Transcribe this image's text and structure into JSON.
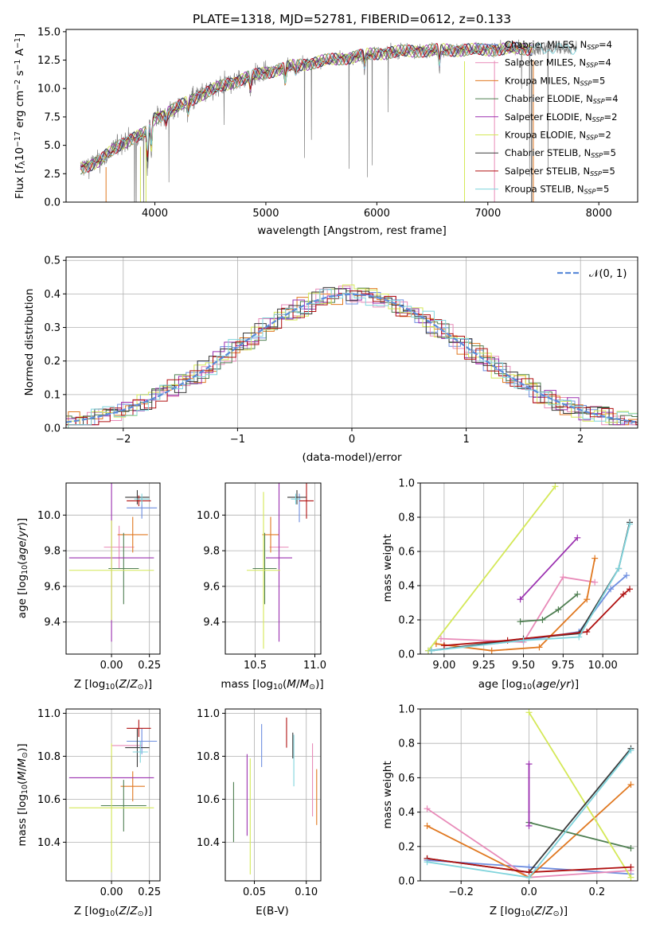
{
  "colors": {
    "chabrier_miles": "#6e8ee0",
    "salpeter_miles": "#e88ab8",
    "kroupa_miles": "#e07820",
    "chabrier_elodie": "#4f7f52",
    "salpeter_elodie": "#9b30b0",
    "kroupa_elodie": "#d4e857",
    "chabrier_stelib": "#3a3a3a",
    "salpeter_stelib": "#b01010",
    "kroupa_stelib": "#7fd4dc",
    "data": "#808080",
    "normal": "#5b8bd9"
  },
  "chart_data": [
    {
      "type": "line",
      "title": "PLATE=1318, MJD=52781, FIBERID=0612, z=0.133",
      "xlabel": "wavelength [Angstrom, rest frame]",
      "ylabel": "Flux [fλ10⁻¹⁷ erg cm⁻² s⁻¹ A⁻¹]",
      "xlim": [
        3200,
        8350
      ],
      "ylim": [
        0,
        15.2
      ],
      "xticks": [
        4000,
        5000,
        6000,
        7000,
        8000
      ],
      "yticks": [
        0.0,
        2.5,
        5.0,
        7.5,
        10.0,
        12.5,
        15.0
      ],
      "legend": {
        "placement": "top-right",
        "entries": [
          "Chabrier MILES, N_SSP=4",
          "Salpeter MILES, N_SSP=4",
          "Kroupa MILES, N_SSP=5",
          "Chabrier ELODIE, N_SSP=4",
          "Salpeter ELODIE, N_SSP=2",
          "Kroupa ELODIE, N_SSP=2",
          "Chabrier STELIB, N_SSP=5",
          "Salpeter STELIB, N_SSP=5",
          "Kroupa STELIB, N_SSP=5"
        ]
      },
      "spectrum_continuum": [
        [
          3330,
          3.0
        ],
        [
          3500,
          3.6
        ],
        [
          3700,
          5.2
        ],
        [
          3900,
          6.0
        ],
        [
          4000,
          7.4
        ],
        [
          4200,
          8.3
        ],
        [
          4400,
          9.4
        ],
        [
          4600,
          10.2
        ],
        [
          4800,
          10.9
        ],
        [
          5000,
          11.4
        ],
        [
          5200,
          11.9
        ],
        [
          5500,
          12.4
        ],
        [
          5800,
          12.8
        ],
        [
          6000,
          13.1
        ],
        [
          6300,
          13.3
        ],
        [
          6600,
          13.4
        ],
        [
          6900,
          13.4
        ],
        [
          7200,
          13.5
        ],
        [
          7500,
          13.5
        ],
        [
          7700,
          13.5
        ],
        [
          7800,
          13.6
        ]
      ],
      "models_end_wavelength": [
        7400,
        7400,
        7400,
        7400,
        7400,
        7400,
        7400,
        7400,
        7800
      ]
    },
    {
      "type": "histogram",
      "xlabel": "(data-model)/error",
      "ylabel": "Normed distribution",
      "xlim": [
        -2.5,
        2.5
      ],
      "ylim": [
        0,
        0.51
      ],
      "xticks": [
        -2,
        -1,
        0,
        1,
        2
      ],
      "yticks": [
        0.0,
        0.1,
        0.2,
        0.3,
        0.4,
        0.5
      ],
      "legend": {
        "placement": "top-right",
        "entries": [
          "𝒩(0, 1)"
        ]
      },
      "bin_width": 0.1
    },
    {
      "type": "scatter",
      "subtype": "errorbar",
      "xlabel": "Z [log₁₀(Z/Z⊙)]",
      "ylabel": "age  [log₁₀(age/yr)]",
      "xlim": [
        -0.3,
        0.32
      ],
      "ylim": [
        9.22,
        10.18
      ],
      "xticks": [
        0.0,
        0.25
      ],
      "yticks": [
        9.4,
        9.6,
        9.8,
        10.0
      ],
      "points": [
        {
          "model": "chabrier_miles",
          "x": 0.2,
          "xerr": 0.1,
          "y": 10.04,
          "yerr": 0.06
        },
        {
          "model": "salpeter_miles",
          "x": 0.05,
          "xerr": 0.1,
          "y": 9.82,
          "yerr": 0.12
        },
        {
          "model": "kroupa_miles",
          "x": 0.14,
          "xerr": 0.1,
          "y": 9.89,
          "yerr": 0.1
        },
        {
          "model": "chabrier_elodie",
          "x": 0.08,
          "xerr": 0.1,
          "y": 9.7,
          "yerr": 0.2
        },
        {
          "model": "salpeter_elodie",
          "x": 0.0,
          "xerr": 0.28,
          "y": 9.76,
          "yerr": 0.47
        },
        {
          "model": "kroupa_elodie",
          "x": 0.0,
          "xerr": 0.28,
          "y": 9.69,
          "yerr": 0.28
        },
        {
          "model": "chabrier_stelib",
          "x": 0.17,
          "xerr": 0.08,
          "y": 10.1,
          "yerr": 0.04
        },
        {
          "model": "salpeter_stelib",
          "x": 0.18,
          "xerr": 0.08,
          "y": 10.08,
          "yerr": 0.03
        },
        {
          "model": "kroupa_stelib",
          "x": 0.2,
          "xerr": 0.05,
          "y": 10.09,
          "yerr": 0.03
        }
      ]
    },
    {
      "type": "scatter",
      "subtype": "errorbar",
      "xlabel": "mass [log₁₀(M/M⊙)]",
      "ylabel": "",
      "xlim": [
        10.25,
        11.05
      ],
      "ylim": [
        9.22,
        10.18
      ],
      "xticks": [
        10.5,
        11.0
      ],
      "yticks": [
        9.4,
        9.6,
        9.8,
        10.0
      ],
      "points": [
        {
          "model": "chabrier_miles",
          "x": 10.87,
          "xerr": 0.0,
          "y": 10.04,
          "yerr": 0.08
        },
        {
          "model": "salpeter_miles",
          "x": 10.7,
          "xerr": 0.08,
          "y": 9.82,
          "yerr": 0.1
        },
        {
          "model": "kroupa_miles",
          "x": 10.63,
          "xerr": 0.07,
          "y": 9.89,
          "yerr": 0.1
        },
        {
          "model": "chabrier_elodie",
          "x": 10.58,
          "xerr": 0.1,
          "y": 9.7,
          "yerr": 0.2
        },
        {
          "model": "salpeter_elodie",
          "x": 10.7,
          "xerr": 0.11,
          "y": 9.76,
          "yerr": 0.47
        },
        {
          "model": "kroupa_elodie",
          "x": 10.57,
          "xerr": 0.14,
          "y": 9.69,
          "yerr": 0.44
        },
        {
          "model": "chabrier_stelib",
          "x": 10.85,
          "xerr": 0.08,
          "y": 10.1,
          "yerr": 0.04
        },
        {
          "model": "salpeter_stelib",
          "x": 10.93,
          "xerr": 0.06,
          "y": 10.08,
          "yerr": 0.1
        },
        {
          "model": "kroupa_stelib",
          "x": 10.84,
          "xerr": 0.04,
          "y": 10.09,
          "yerr": 0.03
        }
      ]
    },
    {
      "type": "line",
      "xlabel": "age  [log₁₀(age/yr)]",
      "ylabel": "mass weight",
      "xlim": [
        8.85,
        10.22
      ],
      "ylim": [
        0.0,
        1.0
      ],
      "xticks": [
        9.0,
        9.25,
        9.5,
        9.75,
        10.0
      ],
      "yticks": [
        0.0,
        0.2,
        0.4,
        0.6,
        0.8,
        1.0
      ],
      "series": [
        {
          "model": "chabrier_miles",
          "x": [
            8.9,
            9.5,
            9.85,
            10.05,
            10.15
          ],
          "y": [
            0.02,
            0.08,
            0.13,
            0.38,
            0.46
          ]
        },
        {
          "model": "salpeter_miles",
          "x": [
            8.98,
            9.5,
            9.75,
            9.95
          ],
          "y": [
            0.09,
            0.07,
            0.45,
            0.42
          ]
        },
        {
          "model": "kroupa_miles",
          "x": [
            8.95,
            9.3,
            9.6,
            9.9,
            9.95
          ],
          "y": [
            0.06,
            0.02,
            0.04,
            0.32,
            0.56
          ]
        },
        {
          "model": "chabrier_elodie",
          "x": [
            9.48,
            9.62,
            9.72,
            9.84
          ],
          "y": [
            0.19,
            0.2,
            0.26,
            0.35
          ]
        },
        {
          "model": "salpeter_elodie",
          "x": [
            9.48,
            9.84
          ],
          "y": [
            0.32,
            0.68
          ]
        },
        {
          "model": "kroupa_elodie",
          "x": [
            8.9,
            9.7
          ],
          "y": [
            0.02,
            0.98
          ]
        },
        {
          "model": "chabrier_stelib",
          "x": [
            8.92,
            9.5,
            9.85,
            10.1,
            10.17
          ],
          "y": [
            0.02,
            0.09,
            0.12,
            0.5,
            0.77
          ]
        },
        {
          "model": "salpeter_stelib",
          "x": [
            9.0,
            9.4,
            9.9,
            10.13,
            10.17
          ],
          "y": [
            0.05,
            0.08,
            0.13,
            0.35,
            0.38
          ]
        },
        {
          "model": "kroupa_stelib",
          "x": [
            8.92,
            9.5,
            9.85,
            10.1,
            10.17
          ],
          "y": [
            0.02,
            0.08,
            0.1,
            0.5,
            0.76
          ]
        }
      ]
    },
    {
      "type": "scatter",
      "subtype": "errorbar",
      "xlabel": "Z [log₁₀(Z/Z⊙)]",
      "ylabel": "mass [log₁₀(M/M⊙)]",
      "xlim": [
        -0.3,
        0.32
      ],
      "ylim": [
        10.22,
        11.02
      ],
      "xticks": [
        0.0,
        0.25
      ],
      "yticks": [
        10.4,
        10.6,
        10.8,
        11.0
      ],
      "points": [
        {
          "model": "chabrier_miles",
          "x": 0.2,
          "xerr": 0.1,
          "y": 10.87,
          "yerr": 0.06
        },
        {
          "model": "salpeter_miles",
          "x": 0.1,
          "xerr": 0.1,
          "y": 10.85,
          "yerr": 0.0
        },
        {
          "model": "kroupa_miles",
          "x": 0.14,
          "xerr": 0.08,
          "y": 10.66,
          "yerr": 0.07
        },
        {
          "model": "chabrier_elodie",
          "x": 0.08,
          "xerr": 0.15,
          "y": 10.57,
          "yerr": 0.12
        },
        {
          "model": "salpeter_elodie",
          "x": 0.0,
          "xerr": 0.28,
          "y": 10.7,
          "yerr": 0.1
        },
        {
          "model": "kroupa_elodie",
          "x": 0.0,
          "xerr": 0.28,
          "y": 10.56,
          "yerr": 0.3
        },
        {
          "model": "chabrier_stelib",
          "x": 0.17,
          "xerr": 0.08,
          "y": 10.84,
          "yerr": 0.09
        },
        {
          "model": "salpeter_stelib",
          "x": 0.18,
          "xerr": 0.08,
          "y": 10.93,
          "yerr": 0.04
        },
        {
          "model": "kroupa_stelib",
          "x": 0.19,
          "xerr": 0.05,
          "y": 10.82,
          "yerr": 0.05
        }
      ]
    },
    {
      "type": "scatter",
      "subtype": "errorbar",
      "xlabel": "E(B-V)",
      "ylabel": "",
      "xlim": [
        0.022,
        0.114
      ],
      "ylim": [
        10.22,
        11.02
      ],
      "xticks": [
        0.05,
        0.1
      ],
      "yticks": [
        10.4,
        10.6,
        10.8,
        11.0
      ],
      "points": [
        {
          "model": "chabrier_elodie",
          "x": 0.03,
          "xerr": 0.0,
          "y": 10.54,
          "yerr": 0.14
        },
        {
          "model": "salpeter_elodie",
          "x": 0.043,
          "xerr": 0.0,
          "y": 10.62,
          "yerr": 0.19
        },
        {
          "model": "kroupa_elodie",
          "x": 0.046,
          "xerr": 0.0,
          "y": 10.52,
          "yerr": 0.27
        },
        {
          "model": "chabrier_miles",
          "x": 0.057,
          "xerr": 0.0,
          "y": 10.85,
          "yerr": 0.1
        },
        {
          "model": "salpeter_stelib",
          "x": 0.081,
          "xerr": 0.0,
          "y": 10.91,
          "yerr": 0.07
        },
        {
          "model": "chabrier_stelib",
          "x": 0.087,
          "xerr": 0.0,
          "y": 10.85,
          "yerr": 0.06
        },
        {
          "model": "kroupa_stelib",
          "x": 0.088,
          "xerr": 0.0,
          "y": 10.78,
          "yerr": 0.12
        },
        {
          "model": "salpeter_miles",
          "x": 0.106,
          "xerr": 0.0,
          "y": 10.69,
          "yerr": 0.17
        },
        {
          "model": "kroupa_miles",
          "x": 0.11,
          "xerr": 0.0,
          "y": 10.61,
          "yerr": 0.13
        }
      ]
    },
    {
      "type": "line",
      "xlabel": "Z [log₁₀(Z/Z⊙)]",
      "ylabel": "mass weight",
      "xlim": [
        -0.32,
        0.32
      ],
      "ylim": [
        0.0,
        1.0
      ],
      "xticks": [
        -0.2,
        0.0,
        0.2
      ],
      "yticks": [
        0.0,
        0.2,
        0.4,
        0.6,
        0.8,
        1.0
      ],
      "series": [
        {
          "model": "chabrier_miles",
          "x": [
            -0.3,
            0.0,
            0.3
          ],
          "y": [
            0.12,
            0.08,
            0.04
          ]
        },
        {
          "model": "salpeter_miles",
          "x": [
            -0.3,
            0.0,
            0.3
          ],
          "y": [
            0.42,
            0.02,
            0.06
          ]
        },
        {
          "model": "kroupa_miles",
          "x": [
            -0.3,
            0.0,
            0.3
          ],
          "y": [
            0.32,
            0.02,
            0.56
          ]
        },
        {
          "model": "chabrier_elodie",
          "x": [
            0.0,
            0.3
          ],
          "y": [
            0.34,
            0.19
          ]
        },
        {
          "model": "salpeter_elodie",
          "x": [
            0.0,
            0.0
          ],
          "y": [
            0.32,
            0.68
          ]
        },
        {
          "model": "kroupa_elodie",
          "x": [
            0.0,
            0.3
          ],
          "y": [
            0.98,
            0.02
          ]
        },
        {
          "model": "chabrier_stelib",
          "x": [
            -0.3,
            0.0,
            0.3
          ],
          "y": [
            0.13,
            0.05,
            0.77
          ]
        },
        {
          "model": "salpeter_stelib",
          "x": [
            -0.3,
            0.0,
            0.3
          ],
          "y": [
            0.13,
            0.05,
            0.08
          ]
        },
        {
          "model": "kroupa_stelib",
          "x": [
            -0.3,
            0.0,
            0.3
          ],
          "y": [
            0.11,
            0.02,
            0.76
          ]
        }
      ]
    }
  ]
}
